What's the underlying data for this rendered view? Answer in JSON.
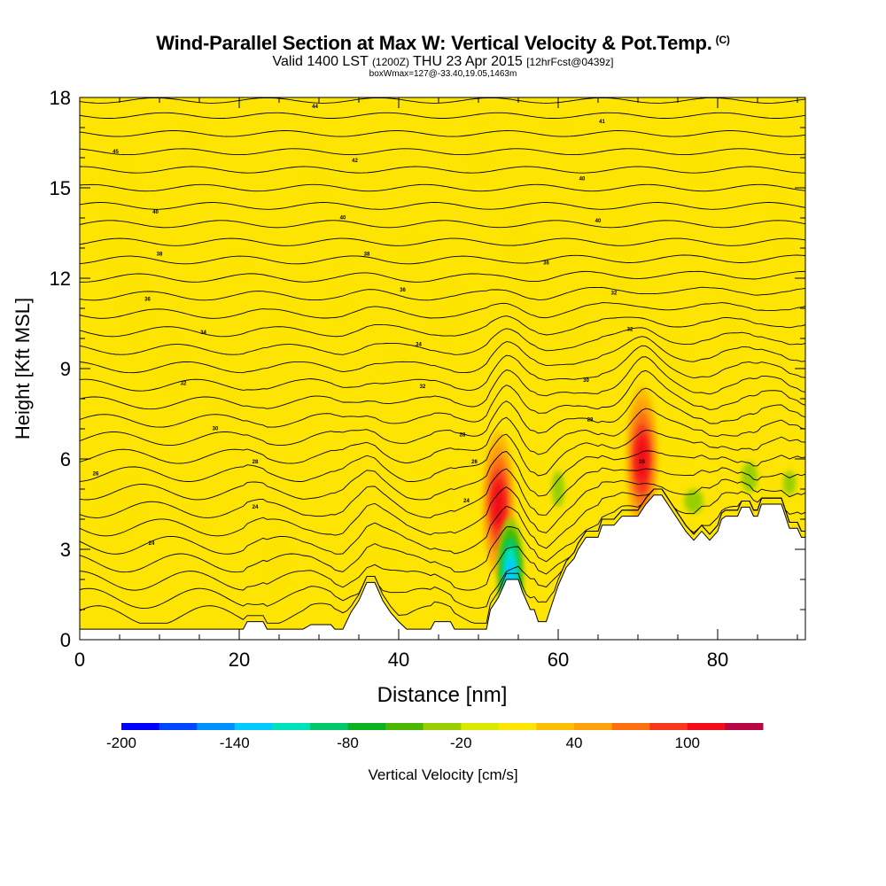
{
  "title": {
    "main": "Wind-Parallel Section at Max W: Vertical Velocity & Pot.Temp.",
    "copyright": "(C)",
    "valid": "Valid 1400 LST",
    "utc": "(1200Z)",
    "date": "THU 23 Apr 2015",
    "forecast": "[12hrFcst@0439z]",
    "box": "boxWmax=127@-33.40,19.05,1463m"
  },
  "colors": {
    "background_yellow": "#fde402",
    "light_orange": "#fdbe05",
    "terrain": "#ffffff",
    "contour": "#000000"
  },
  "chart_data": {
    "type": "heatmap",
    "xlabel": "Distance [nm]",
    "ylabel": "Height [Kft MSL]",
    "xlim": [
      0,
      91
    ],
    "ylim": [
      0,
      18
    ],
    "x_ticks": [
      0,
      20,
      40,
      60,
      80
    ],
    "y_ticks": [
      0,
      3,
      6,
      9,
      12,
      15,
      18
    ],
    "colorbar": {
      "label": "Vertical Velocity [cm/s]",
      "min": -200,
      "step": 20,
      "tick_labels": [
        "-200",
        "-140",
        "-80",
        "-20",
        "40",
        "100"
      ],
      "tick_values": [
        -200,
        -140,
        -80,
        -20,
        40,
        100
      ],
      "colors": [
        "#0000fe",
        "#0147fe",
        "#0090fe",
        "#01cafe",
        "#00e3ba",
        "#01c86a",
        "#0cb122",
        "#4ab801",
        "#99cf01",
        "#dbe801",
        "#fde402",
        "#fdbe05",
        "#fda00a",
        "#fc6f13",
        "#f8381c",
        "#f20d17",
        "#b70745"
      ]
    },
    "terrain_height_kft": [
      [
        0,
        0.35
      ],
      [
        8,
        0.35
      ],
      [
        16,
        0.35
      ],
      [
        20,
        0.35
      ],
      [
        20.5,
        0.35
      ],
      [
        21,
        0.6
      ],
      [
        23,
        0.6
      ],
      [
        23.5,
        0.35
      ],
      [
        28,
        0.35
      ],
      [
        29,
        0.5
      ],
      [
        31.5,
        0.5
      ],
      [
        32,
        0.35
      ],
      [
        33,
        0.35
      ],
      [
        34,
        0.9
      ],
      [
        35,
        1.3
      ],
      [
        36,
        1.9
      ],
      [
        37,
        1.9
      ],
      [
        38,
        1.3
      ],
      [
        39,
        0.9
      ],
      [
        40,
        0.6
      ],
      [
        41,
        0.35
      ],
      [
        44,
        0.35
      ],
      [
        44.5,
        0.6
      ],
      [
        46.5,
        0.6
      ],
      [
        47,
        0.35
      ],
      [
        51,
        0.35
      ],
      [
        51.5,
        1.0
      ],
      [
        52.5,
        1.4
      ],
      [
        53.5,
        2.0
      ],
      [
        55,
        2.0
      ],
      [
        55.5,
        1.6
      ],
      [
        56.5,
        1.0
      ],
      [
        57,
        1.0
      ],
      [
        57.5,
        0.6
      ],
      [
        58.5,
        0.6
      ],
      [
        59,
        1.0
      ],
      [
        59.5,
        1.4
      ],
      [
        60,
        1.8
      ],
      [
        61,
        2.4
      ],
      [
        62,
        2.7
      ],
      [
        62.5,
        3.0
      ],
      [
        63.5,
        3.4
      ],
      [
        65,
        3.4
      ],
      [
        65.5,
        3.8
      ],
      [
        67,
        3.8
      ],
      [
        68,
        4.1
      ],
      [
        70,
        4.1
      ],
      [
        71,
        4.5
      ],
      [
        72,
        4.8
      ],
      [
        73,
        4.8
      ],
      [
        74,
        4.4
      ],
      [
        75,
        4.0
      ],
      [
        76,
        3.6
      ],
      [
        77,
        3.3
      ],
      [
        78,
        3.6
      ],
      [
        79,
        3.3
      ],
      [
        80,
        3.6
      ],
      [
        80.5,
        4.0
      ],
      [
        81,
        4.1
      ],
      [
        82.5,
        4.1
      ],
      [
        83,
        4.4
      ],
      [
        84,
        4.4
      ],
      [
        84.5,
        4.1
      ],
      [
        85,
        4.1
      ],
      [
        85.5,
        4.5
      ],
      [
        88,
        4.5
      ],
      [
        88.5,
        4.1
      ],
      [
        89,
        3.7
      ],
      [
        90,
        3.7
      ],
      [
        90.5,
        3.4
      ],
      [
        91,
        3.4
      ]
    ],
    "updraft_cores": [
      {
        "x_nm": 52.5,
        "z_kft": 4.5,
        "max_cm_s": 127
      },
      {
        "x_nm": 70.5,
        "z_kft": 6.0,
        "max_cm_s": 100
      }
    ],
    "downdraft_core": {
      "x_nm": 54.0,
      "z_kft": 2.2,
      "min_cm_s": -140
    },
    "contour_base_kft": [
      0.6,
      1.2,
      1.8,
      2.4,
      3.0,
      3.6,
      4.2,
      4.8,
      5.4,
      6.0,
      6.6,
      7.2,
      7.8,
      8.4,
      9.0,
      9.6,
      10.2,
      10.8,
      11.4,
      12.0,
      12.6,
      13.2,
      13.8,
      14.4,
      15.0,
      15.6,
      16.2,
      16.8,
      17.4,
      17.9
    ],
    "contour_labels": [
      {
        "text": "44",
        "x_nm": 29.5,
        "z_kft": 17.7
      },
      {
        "text": "41",
        "x_nm": 65.5,
        "z_kft": 17.2
      },
      {
        "text": "45",
        "x_nm": 4.5,
        "z_kft": 16.2
      },
      {
        "text": "42",
        "x_nm": 34.5,
        "z_kft": 15.9
      },
      {
        "text": "40",
        "x_nm": 63.0,
        "z_kft": 15.3
      },
      {
        "text": "40",
        "x_nm": 9.5,
        "z_kft": 14.2
      },
      {
        "text": "40",
        "x_nm": 33.0,
        "z_kft": 14.0
      },
      {
        "text": "40",
        "x_nm": 65.0,
        "z_kft": 13.9
      },
      {
        "text": "38",
        "x_nm": 10.0,
        "z_kft": 12.8
      },
      {
        "text": "38",
        "x_nm": 36.0,
        "z_kft": 12.8
      },
      {
        "text": "36",
        "x_nm": 58.5,
        "z_kft": 12.5
      },
      {
        "text": "36",
        "x_nm": 8.5,
        "z_kft": 11.3
      },
      {
        "text": "36",
        "x_nm": 40.5,
        "z_kft": 11.6
      },
      {
        "text": "32",
        "x_nm": 67.0,
        "z_kft": 11.5
      },
      {
        "text": "34",
        "x_nm": 15.5,
        "z_kft": 10.2
      },
      {
        "text": "34",
        "x_nm": 42.5,
        "z_kft": 9.8
      },
      {
        "text": "32",
        "x_nm": 69.0,
        "z_kft": 10.3
      },
      {
        "text": "32",
        "x_nm": 13.0,
        "z_kft": 8.5
      },
      {
        "text": "32",
        "x_nm": 43.0,
        "z_kft": 8.4
      },
      {
        "text": "30",
        "x_nm": 63.5,
        "z_kft": 8.6
      },
      {
        "text": "30",
        "x_nm": 17.0,
        "z_kft": 7.0
      },
      {
        "text": "28",
        "x_nm": 48.0,
        "z_kft": 6.8
      },
      {
        "text": "28",
        "x_nm": 64.0,
        "z_kft": 7.3
      },
      {
        "text": "28",
        "x_nm": 22.0,
        "z_kft": 5.9
      },
      {
        "text": "26",
        "x_nm": 49.5,
        "z_kft": 5.9
      },
      {
        "text": "26",
        "x_nm": 70.5,
        "z_kft": 5.9
      },
      {
        "text": "26",
        "x_nm": 2.0,
        "z_kft": 5.5
      },
      {
        "text": "24",
        "x_nm": 22.0,
        "z_kft": 4.4
      },
      {
        "text": "24",
        "x_nm": 48.5,
        "z_kft": 4.6
      },
      {
        "text": "24",
        "x_nm": 9.0,
        "z_kft": 3.2
      }
    ]
  }
}
